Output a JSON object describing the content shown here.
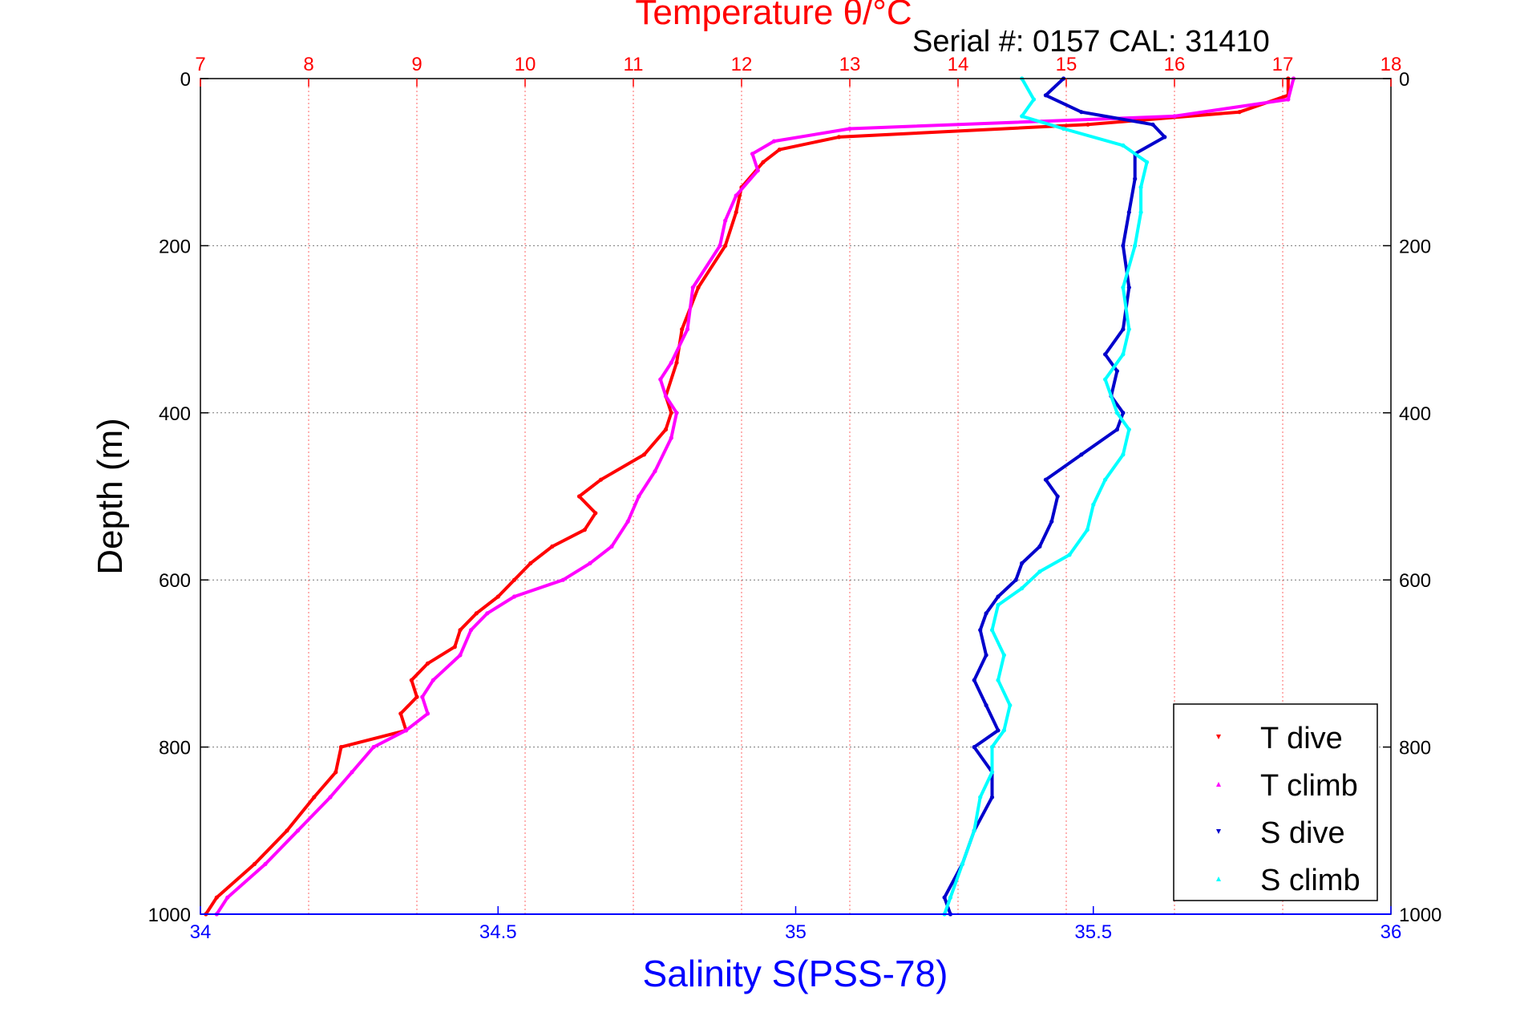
{
  "chart_data": {
    "type": "scatter",
    "title": "Temperature θ/°C",
    "annotation": "Serial #: 0157  CAL: 31410",
    "xlabel": "Salinity S(PSS-78)",
    "ylabel": "Depth (m)",
    "x_top_ticks": [
      "7",
      "8",
      "9",
      "10",
      "11",
      "12",
      "13",
      "14",
      "15",
      "16",
      "17",
      "18"
    ],
    "x_bottom_ticks": [
      "34",
      "34.5",
      "35",
      "35.5",
      "36"
    ],
    "y_ticks": [
      "0",
      "200",
      "400",
      "600",
      "800",
      "1000"
    ],
    "temperature_lim": [
      7,
      18
    ],
    "salinity_lim": [
      34,
      36
    ],
    "depth_lim": [
      0,
      1000
    ],
    "y_reversed": true,
    "grid": true,
    "legend_position": "bottom-right",
    "colors": {
      "temperature_axis": "#ff0000",
      "salinity_axis": "#0000ff",
      "t_dive": "#ff0000",
      "t_climb": "#ff00ff",
      "s_dive": "#0000cc",
      "s_climb": "#00ffff"
    },
    "series": [
      {
        "name": "T dive",
        "axis": "temperature",
        "depth": [
          0,
          20,
          40,
          55,
          70,
          85,
          100,
          130,
          160,
          200,
          250,
          300,
          340,
          380,
          400,
          420,
          450,
          480,
          500,
          520,
          540,
          560,
          580,
          600,
          620,
          640,
          660,
          680,
          700,
          720,
          740,
          760,
          780,
          800,
          830,
          860,
          900,
          940,
          980,
          1000
        ],
        "values": [
          17.05,
          17.05,
          16.6,
          15.2,
          12.9,
          12.35,
          12.2,
          12.0,
          11.95,
          11.85,
          11.6,
          11.45,
          11.4,
          11.3,
          11.35,
          11.3,
          11.1,
          10.7,
          10.5,
          10.65,
          10.55,
          10.25,
          10.05,
          9.9,
          9.75,
          9.55,
          9.4,
          9.35,
          9.1,
          8.95,
          9.0,
          8.85,
          8.9,
          8.3,
          8.25,
          8.05,
          7.8,
          7.5,
          7.15,
          7.05
        ]
      },
      {
        "name": "T climb",
        "axis": "temperature",
        "depth": [
          0,
          25,
          45,
          60,
          75,
          90,
          110,
          140,
          170,
          200,
          250,
          300,
          340,
          360,
          380,
          400,
          430,
          470,
          500,
          530,
          560,
          580,
          600,
          620,
          640,
          660,
          690,
          720,
          740,
          760,
          780,
          800,
          830,
          860,
          900,
          940,
          980,
          1000
        ],
        "values": [
          17.1,
          17.05,
          16.0,
          13.0,
          12.3,
          12.1,
          12.15,
          11.95,
          11.85,
          11.8,
          11.55,
          11.5,
          11.35,
          11.25,
          11.3,
          11.4,
          11.35,
          11.2,
          11.05,
          10.95,
          10.8,
          10.6,
          10.35,
          9.9,
          9.65,
          9.5,
          9.4,
          9.15,
          9.05,
          9.1,
          8.9,
          8.6,
          8.4,
          8.2,
          7.9,
          7.6,
          7.25,
          7.15
        ]
      },
      {
        "name": "S dive",
        "axis": "salinity",
        "depth": [
          0,
          20,
          40,
          55,
          70,
          90,
          120,
          160,
          200,
          250,
          300,
          330,
          350,
          380,
          400,
          420,
          450,
          480,
          500,
          530,
          560,
          580,
          600,
          620,
          640,
          660,
          690,
          720,
          750,
          780,
          800,
          830,
          860,
          900,
          940,
          980,
          1000
        ],
        "values": [
          35.45,
          35.42,
          35.48,
          35.6,
          35.62,
          35.57,
          35.57,
          35.56,
          35.55,
          35.56,
          35.55,
          35.52,
          35.54,
          35.53,
          35.55,
          35.54,
          35.48,
          35.42,
          35.44,
          35.43,
          35.41,
          35.38,
          35.37,
          35.34,
          35.32,
          35.31,
          35.32,
          35.3,
          35.32,
          35.34,
          35.3,
          35.33,
          35.33,
          35.3,
          35.28,
          35.25,
          35.26
        ]
      },
      {
        "name": "S climb",
        "axis": "salinity",
        "depth": [
          0,
          25,
          45,
          60,
          80,
          100,
          130,
          160,
          200,
          250,
          300,
          330,
          360,
          400,
          420,
          450,
          480,
          510,
          540,
          570,
          590,
          610,
          630,
          660,
          690,
          720,
          750,
          780,
          800,
          830,
          860,
          900,
          940,
          980,
          1000
        ],
        "values": [
          35.38,
          35.4,
          35.38,
          35.45,
          35.55,
          35.59,
          35.58,
          35.58,
          35.57,
          35.55,
          35.56,
          35.55,
          35.52,
          35.54,
          35.56,
          35.55,
          35.52,
          35.5,
          35.49,
          35.46,
          35.41,
          35.38,
          35.34,
          35.33,
          35.35,
          35.34,
          35.36,
          35.35,
          35.33,
          35.33,
          35.31,
          35.3,
          35.28,
          35.26,
          35.25
        ]
      }
    ]
  }
}
